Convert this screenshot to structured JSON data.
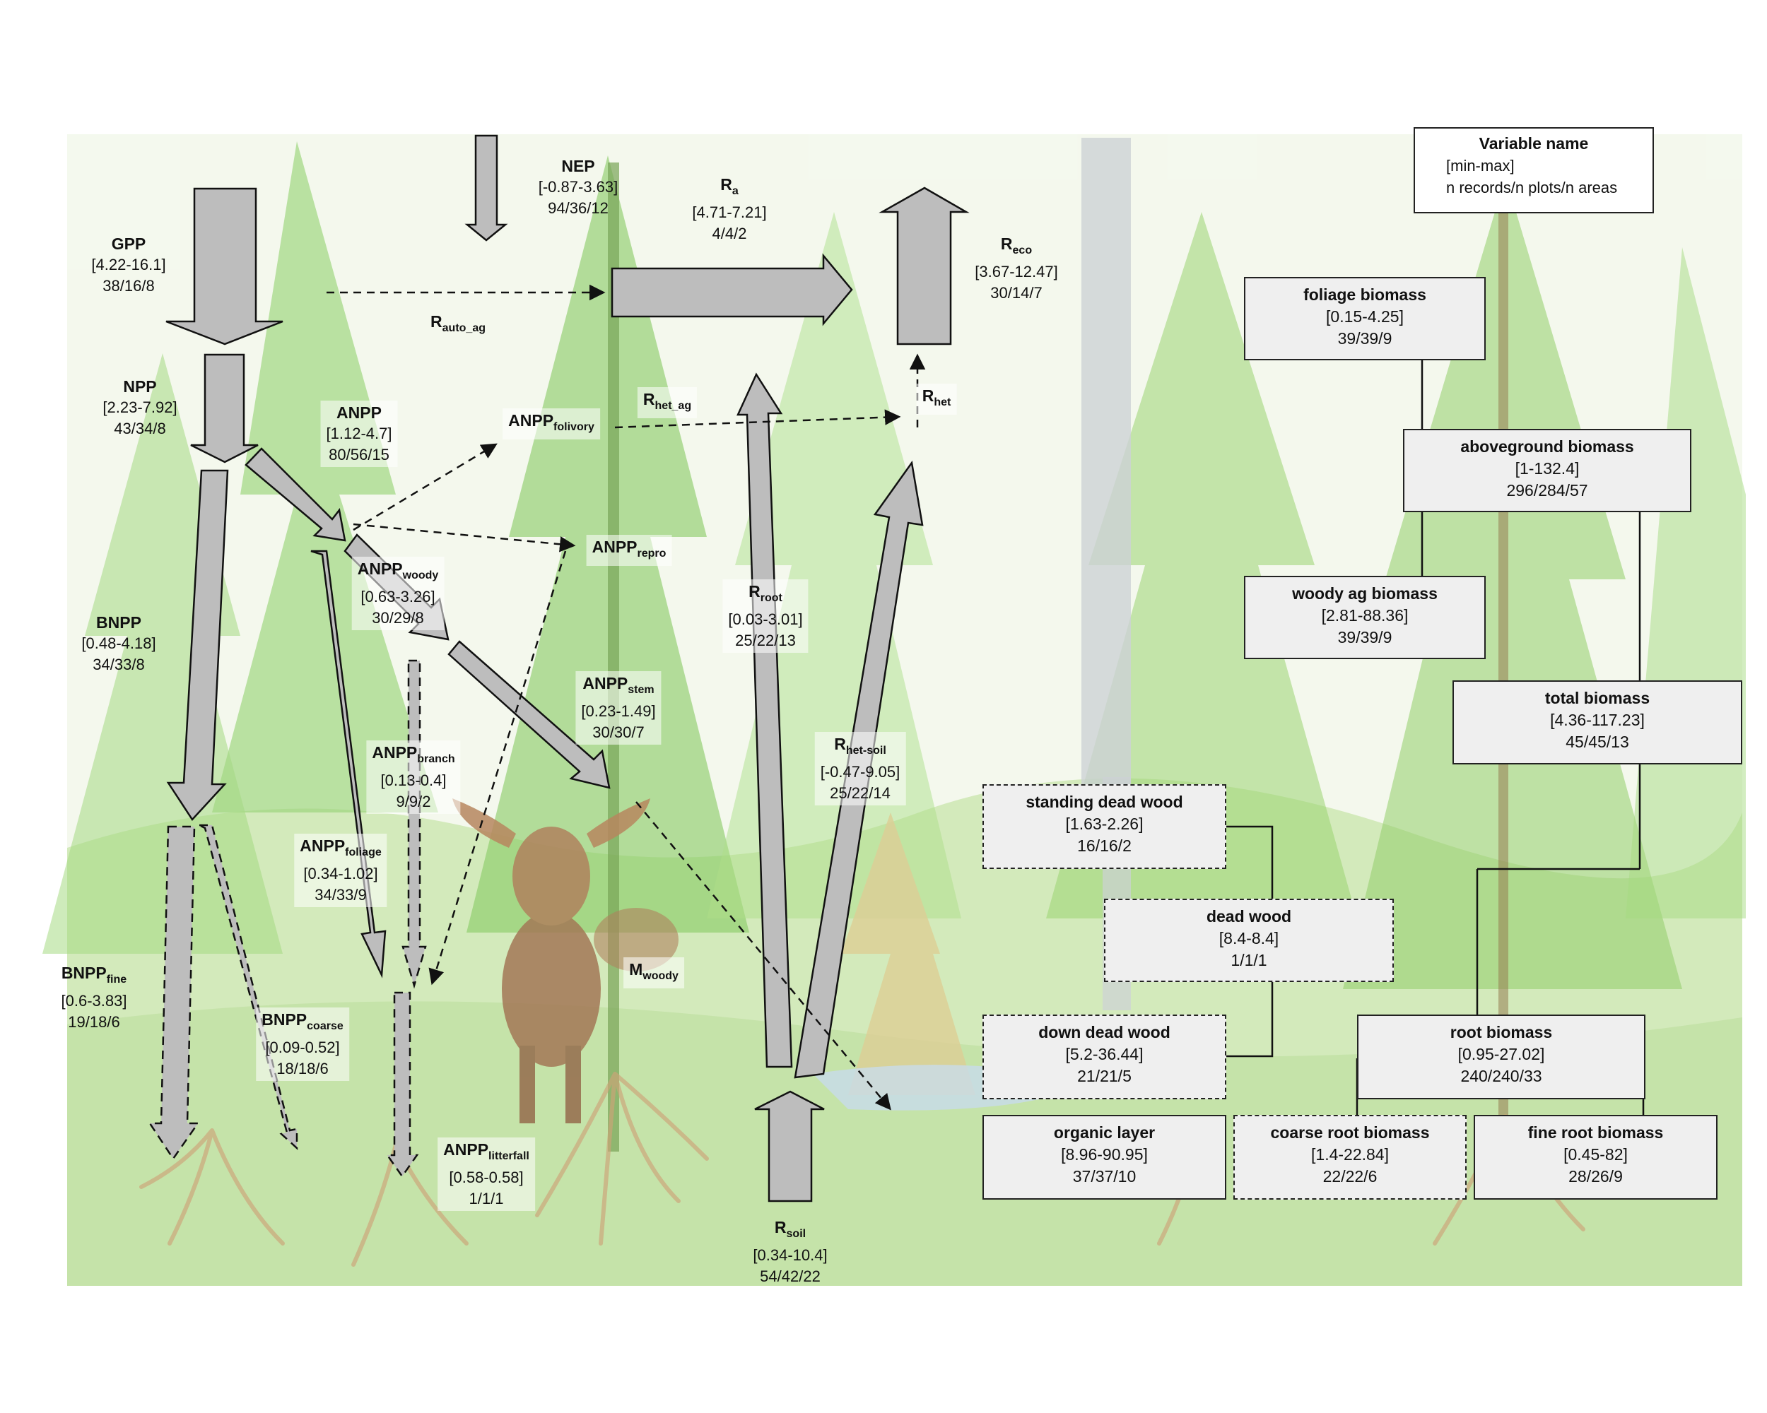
{
  "flows": {
    "gpp": {
      "name": "GPP",
      "sub": "",
      "range": "[4.22-16.1]",
      "counts": "38/16/8"
    },
    "nep": {
      "name": "NEP",
      "sub": "",
      "range": "[-0.87-3.63]",
      "counts": "94/36/12"
    },
    "ra": {
      "name": "R",
      "sub": "a",
      "range": "[4.71-7.21]",
      "counts": "4/4/2"
    },
    "reco": {
      "name": "R",
      "sub": "eco",
      "range": "[3.67-12.47]",
      "counts": "30/14/7"
    },
    "rauto_ag": {
      "name": "R",
      "sub": "auto_ag"
    },
    "npp": {
      "name": "NPP",
      "sub": "",
      "range": "[2.23-7.92]",
      "counts": "43/34/8"
    },
    "anpp": {
      "name": "ANPP",
      "sub": "",
      "range": "[1.12-4.7]",
      "counts": "80/56/15"
    },
    "anpp_folivory": {
      "name": "ANPP",
      "sub": "folivory"
    },
    "rhet_ag": {
      "name": "R",
      "sub": "het_ag"
    },
    "rhet": {
      "name": "R",
      "sub": "het"
    },
    "anpp_repro": {
      "name": "ANPP",
      "sub": "repro"
    },
    "anpp_woody": {
      "name": "ANPP",
      "sub": "woody",
      "range": "[0.63-3.26]",
      "counts": "30/29/8"
    },
    "bnpp": {
      "name": "BNPP",
      "sub": "",
      "range": "[0.48-4.18]",
      "counts": "34/33/8"
    },
    "rroot": {
      "name": "R",
      "sub": "root",
      "range": "[0.03-3.01]",
      "counts": "25/22/13"
    },
    "anpp_stem": {
      "name": "ANPP",
      "sub": "stem",
      "range": "[0.23-1.49]",
      "counts": "30/30/7"
    },
    "rhet_soil": {
      "name": "R",
      "sub": "het-soil",
      "range": "[-0.47-9.05]",
      "counts": "25/22/14"
    },
    "anpp_branch": {
      "name": "ANPP",
      "sub": "branch",
      "range": "[0.13-0.4]",
      "counts": "9/9/2"
    },
    "anpp_foliage": {
      "name": "ANPP",
      "sub": "foliage",
      "range": "[0.34-1.02]",
      "counts": "34/33/9"
    },
    "bnpp_fine": {
      "name": "BNPP",
      "sub": "fine",
      "range": "[0.6-3.83]",
      "counts": "19/18/6"
    },
    "bnpp_coarse": {
      "name": "BNPP",
      "sub": "coarse",
      "range": "[0.09-0.52]",
      "counts": "18/18/6"
    },
    "m_woody": {
      "name": "M",
      "sub": "woody"
    },
    "anpp_litterfall": {
      "name": "ANPP",
      "sub": "litterfall",
      "range": "[0.58-0.58]",
      "counts": "1/1/1"
    },
    "rsoil": {
      "name": "R",
      "sub": "soil",
      "range": "[0.34-10.4]",
      "counts": "54/42/22"
    }
  },
  "legend": {
    "title": "Variable name",
    "line1": "[min-max]",
    "line2": "n records/n plots/n areas"
  },
  "stocks": {
    "foliage": {
      "name": "foliage biomass",
      "range": "[0.15-4.25]",
      "counts": "39/39/9"
    },
    "aboveground": {
      "name": "aboveground biomass",
      "range": "[1-132.4]",
      "counts": "296/284/57"
    },
    "woody_ag": {
      "name": "woody ag biomass",
      "range": "[2.81-88.36]",
      "counts": "39/39/9"
    },
    "total": {
      "name": "total biomass",
      "range": "[4.36-117.23]",
      "counts": "45/45/13"
    },
    "standing_dead": {
      "name": "standing dead wood",
      "range": "[1.63-2.26]",
      "counts": "16/16/2"
    },
    "dead_wood": {
      "name": "dead wood",
      "range": "[8.4-8.4]",
      "counts": "1/1/1"
    },
    "down_dead": {
      "name": "down dead wood",
      "range": "[5.2-36.44]",
      "counts": "21/21/5"
    },
    "root": {
      "name": "root biomass",
      "range": "[0.95-27.02]",
      "counts": "240/240/33"
    },
    "organic": {
      "name": "organic layer",
      "range": "[8.96-90.95]",
      "counts": "37/37/10"
    },
    "coarse_root": {
      "name": "coarse root biomass",
      "range": "[1.4-22.84]",
      "counts": "22/22/6"
    },
    "fine_root": {
      "name": "fine root biomass",
      "range": "[0.45-82]",
      "counts": "28/26/9"
    }
  },
  "colors": {
    "arrow_fill": "#bdbdbd",
    "box_fill": "#efefef",
    "foliage_light": "#b8df8a",
    "foliage_dark": "#6fbf4a",
    "trunk": "#c8cdd2",
    "roots": "#c89a6a",
    "moose": "#9a6a45"
  }
}
